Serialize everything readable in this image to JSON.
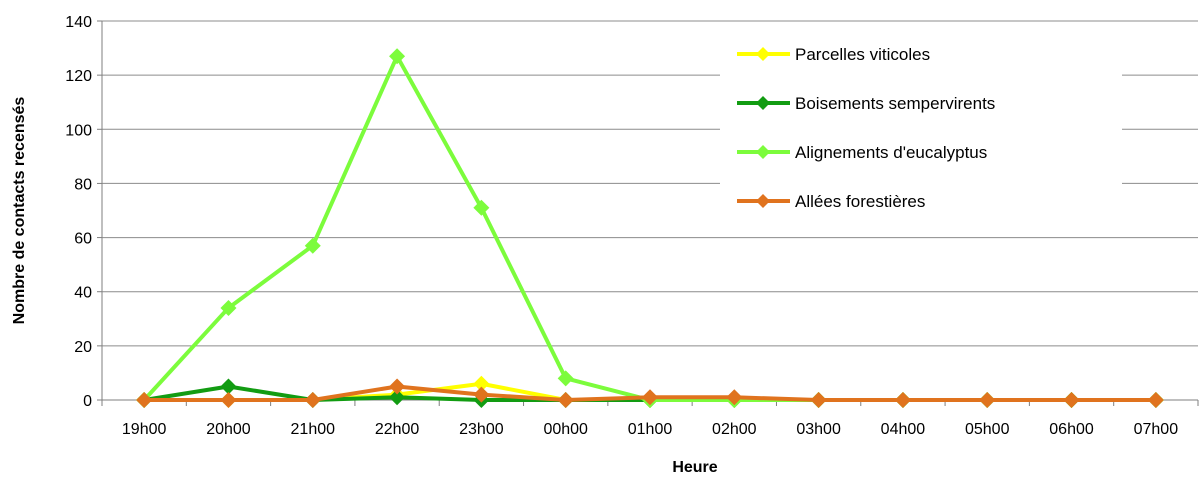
{
  "chart_data": {
    "type": "line",
    "xlabel": "Heure",
    "ylabel": "Nombre de contacts recensés",
    "ylim": [
      0,
      140
    ],
    "yticks": [
      0,
      20,
      40,
      60,
      80,
      100,
      120,
      140
    ],
    "grid": "horizontal",
    "legend_position": "top-right",
    "categories": [
      "19h00",
      "20h00",
      "21h00",
      "22h00",
      "23h00",
      "00h00",
      "01h00",
      "02h00",
      "03h00",
      "04h00",
      "05h00",
      "06h00",
      "07h00"
    ],
    "series": [
      {
        "name": "Parcelles viticoles",
        "color": "#FFFF00",
        "values": [
          0,
          0,
          0,
          2,
          6,
          0,
          0,
          0,
          0,
          0,
          0,
          0,
          0
        ]
      },
      {
        "name": "Boisements sempervirents",
        "color": "#129C12",
        "values": [
          0,
          5,
          0,
          1,
          0,
          0,
          0,
          0,
          0,
          0,
          0,
          0,
          0
        ]
      },
      {
        "name": "Alignements d'eucalyptus",
        "color": "#7CFC3C",
        "values": [
          0,
          34,
          57,
          127,
          71,
          8,
          0,
          0,
          0,
          0,
          0,
          0,
          0
        ]
      },
      {
        "name": "Allées forestières",
        "color": "#E0731E",
        "values": [
          0,
          0,
          0,
          5,
          2,
          0,
          1,
          1,
          0,
          0,
          0,
          0,
          0
        ]
      }
    ]
  }
}
